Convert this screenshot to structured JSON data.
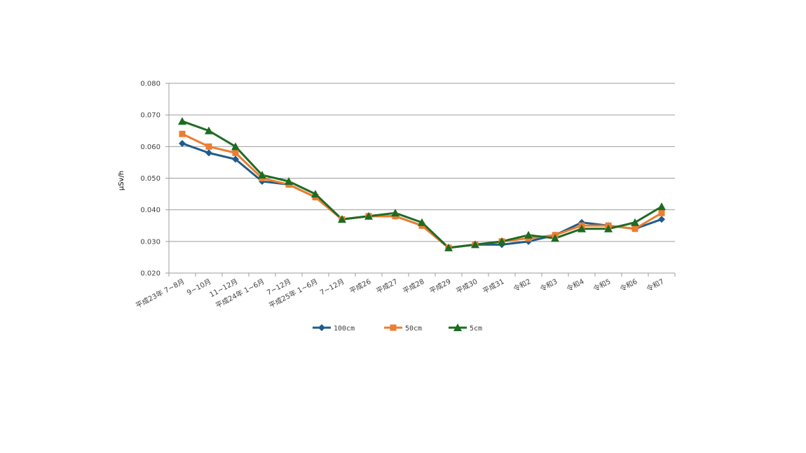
{
  "chart_data": {
    "type": "line",
    "ylabel": "μSv/h",
    "xlabel": "",
    "title": "",
    "ylim": [
      0.02,
      0.08
    ],
    "yticks": [
      "0.020",
      "0.030",
      "0.040",
      "0.050",
      "0.060",
      "0.070",
      "0.080"
    ],
    "grid": true,
    "legend_position": "bottom",
    "categories": [
      "平成23年 7~8月",
      "9~10月",
      "11~12月",
      "平成24年 1~6月",
      "7~12月",
      "平成25年 1~6月",
      "7~12月",
      "平成26",
      "平成27",
      "平成28",
      "平成29",
      "平成30",
      "平成31",
      "令和2",
      "令和3",
      "令和4",
      "令和5",
      "令和6",
      "令和7"
    ],
    "series": [
      {
        "name": "100cm",
        "color": "#1f5c8b",
        "marker": "diamond",
        "values": [
          0.061,
          0.058,
          0.056,
          0.049,
          0.048,
          0.044,
          0.037,
          0.038,
          0.038,
          0.035,
          0.028,
          0.029,
          0.029,
          0.03,
          0.032,
          0.036,
          0.035,
          0.034,
          0.037
        ]
      },
      {
        "name": "50cm",
        "color": "#ed7d31",
        "marker": "square",
        "values": [
          0.064,
          0.06,
          0.058,
          0.05,
          0.048,
          0.044,
          0.037,
          0.038,
          0.038,
          0.035,
          0.028,
          0.029,
          0.03,
          0.031,
          0.032,
          0.035,
          0.035,
          0.034,
          0.039
        ]
      },
      {
        "name": "5cm",
        "color": "#1e6b22",
        "marker": "triangle",
        "values": [
          0.068,
          0.065,
          0.06,
          0.051,
          0.049,
          0.045,
          0.037,
          0.038,
          0.039,
          0.036,
          0.028,
          0.029,
          0.03,
          0.032,
          0.031,
          0.034,
          0.034,
          0.036,
          0.041
        ]
      }
    ]
  }
}
